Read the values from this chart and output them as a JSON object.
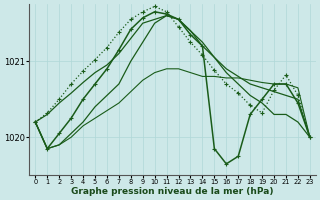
{
  "xlabel": "Graphe pression niveau de la mer (hPa)",
  "x_ticks": [
    0,
    1,
    2,
    3,
    4,
    5,
    6,
    7,
    8,
    9,
    10,
    11,
    12,
    13,
    14,
    15,
    16,
    17,
    18,
    19,
    20,
    21,
    22,
    23
  ],
  "yticks": [
    1020,
    1021
  ],
  "ylim": [
    1019.5,
    1021.75
  ],
  "xlim": [
    -0.5,
    23.5
  ],
  "bg_color": "#cde8e8",
  "grid_color": "#b0d8d8",
  "line_color": "#1a5c1a",
  "series": [
    {
      "y": [
        1020.2,
        1019.85,
        1019.9,
        1020.0,
        1020.15,
        1020.25,
        1020.35,
        1020.45,
        1020.6,
        1020.75,
        1020.85,
        1020.9,
        1020.9,
        1020.85,
        1020.8,
        1020.8,
        1020.78,
        1020.78,
        1020.75,
        1020.72,
        1020.7,
        1020.7,
        1020.65,
        1020.0
      ],
      "lw": 0.8,
      "ls": "-",
      "marker": null,
      "ms": 0
    },
    {
      "y": [
        1020.2,
        1019.85,
        1019.9,
        1020.05,
        1020.2,
        1020.4,
        1020.55,
        1020.7,
        1021.0,
        1021.25,
        1021.5,
        1021.6,
        1021.55,
        1021.4,
        1021.2,
        1021.05,
        1020.9,
        1020.8,
        1020.7,
        1020.65,
        1020.6,
        1020.55,
        1020.5,
        1020.0
      ],
      "lw": 0.9,
      "ls": "-",
      "marker": null,
      "ms": 0
    },
    {
      "y": [
        1020.2,
        1020.3,
        1020.45,
        1020.58,
        1020.72,
        1020.85,
        1020.95,
        1021.1,
        1021.3,
        1021.5,
        1021.55,
        1021.6,
        1021.55,
        1021.4,
        1021.25,
        1021.05,
        1020.85,
        1020.7,
        1020.55,
        1020.45,
        1020.3,
        1020.3,
        1020.2,
        1020.0
      ],
      "lw": 0.9,
      "ls": "-",
      "marker": null,
      "ms": 0
    },
    {
      "y": [
        1020.2,
        1019.85,
        1020.05,
        1020.25,
        1020.5,
        1020.7,
        1020.9,
        1021.15,
        1021.42,
        1021.57,
        1021.65,
        1021.62,
        1021.55,
        1021.35,
        1021.2,
        1019.85,
        1019.65,
        1019.75,
        1020.3,
        1020.5,
        1020.7,
        1020.7,
        1020.45,
        1020.0
      ],
      "lw": 1.1,
      "ls": "-",
      "marker": "+",
      "ms": 3.5
    },
    {
      "y": [
        1020.2,
        1020.32,
        1020.5,
        1020.7,
        1020.87,
        1021.02,
        1021.18,
        1021.38,
        1021.55,
        1021.65,
        1021.72,
        1021.65,
        1021.45,
        1021.25,
        1021.08,
        1020.88,
        1020.7,
        1020.58,
        1020.42,
        1020.32,
        1020.62,
        1020.82,
        1020.55,
        1020.0
      ],
      "lw": 0.9,
      "ls": ":",
      "marker": "+",
      "ms": 3.0
    }
  ]
}
